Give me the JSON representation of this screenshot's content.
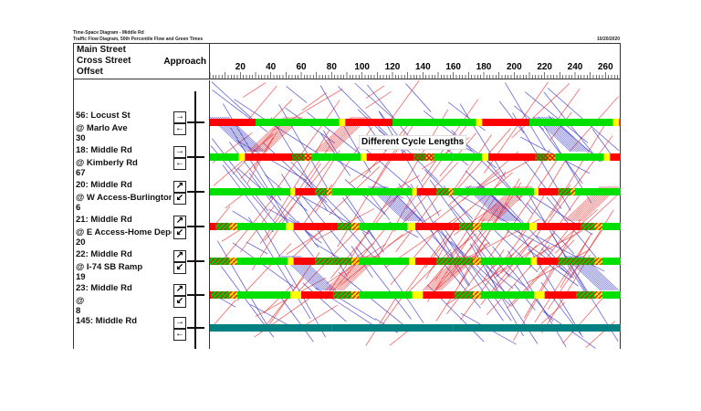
{
  "header": {
    "title": "Time-Space Diagram - Middle Rd",
    "subtitle": "Traffic Flow Diagram, 50th Percentile Flow and Green Times",
    "date": "10/20/2020"
  },
  "columns": {
    "main_street": "Main Street",
    "cross_street": "Cross Street",
    "offset": "Offset",
    "approach": "Approach"
  },
  "axis": {
    "ticks": [
      20,
      40,
      60,
      80,
      100,
      120,
      140,
      160,
      180,
      200,
      220,
      240,
      260
    ],
    "range": [
      0,
      270
    ]
  },
  "annotation": "Different Cycle Lengths",
  "colors": {
    "green": "#00e000",
    "yellow": "#ffff00",
    "red": "#ff0000",
    "teal": "#008080",
    "nb_traffic": "#3333cc",
    "sb_traffic": "#ee3333"
  },
  "intersections": [
    {
      "name": "56: Locust St",
      "cross": "@ Marlo Ave",
      "offset": "30",
      "approach": [
        "arrow-right",
        "arrow-left"
      ],
      "cycle": 90,
      "phases": [
        [
          "red",
          0,
          30
        ],
        [
          "green",
          30,
          85
        ],
        [
          "yellow",
          85,
          89
        ],
        [
          "red",
          89,
          90
        ]
      ]
    },
    {
      "name": "18: Middle Rd",
      "cross": "@ Kimberly Rd",
      "offset": "67",
      "approach": [
        "arrow-right",
        "arrow-left"
      ],
      "cycle": 80,
      "phases": [
        [
          "green",
          0,
          19
        ],
        [
          "yellow",
          19,
          23
        ],
        [
          "red",
          23,
          54
        ],
        [
          "xhatch",
          54,
          62
        ],
        [
          "xyellow",
          62,
          67
        ],
        [
          "green",
          67,
          80
        ]
      ]
    },
    {
      "name": "20: Middle Rd",
      "cross": "@ W Access-Burlington",
      "offset": "6",
      "approach": [
        "arrow-ne",
        "arrow-sw"
      ],
      "cycle": 80,
      "phases": [
        [
          "green",
          0,
          53
        ],
        [
          "yellow",
          53,
          56
        ],
        [
          "red",
          56,
          69
        ],
        [
          "hatch",
          69,
          77
        ],
        [
          "hyellow",
          77,
          80
        ]
      ]
    },
    {
      "name": "21: Middle Rd",
      "cross": "@ E Access-Home Depot",
      "offset": "20",
      "approach": [
        "arrow-ne",
        "arrow-sw"
      ],
      "cycle": 80,
      "phases": [
        [
          "red",
          0,
          4
        ],
        [
          "hatch",
          4,
          13
        ],
        [
          "hyellow",
          13,
          18
        ],
        [
          "green",
          18,
          50
        ],
        [
          "yellow",
          50,
          55
        ],
        [
          "red",
          55,
          80
        ]
      ]
    },
    {
      "name": "22: Middle Rd",
      "cross": "@ I-74 SB Ramp",
      "offset": "19",
      "approach": [
        "arrow-ne",
        "arrow-sw"
      ],
      "cycle": 80,
      "phases": [
        [
          "hatch",
          0,
          13
        ],
        [
          "hyellow",
          13,
          18
        ],
        [
          "green",
          18,
          51
        ],
        [
          "yellow",
          51,
          55
        ],
        [
          "red",
          55,
          69
        ],
        [
          "hatch",
          69,
          80
        ]
      ]
    },
    {
      "name": "23: Middle Rd",
      "cross": "@",
      "offset": "8",
      "approach": [
        "arrow-ne",
        "arrow-sw"
      ],
      "cycle": 80,
      "phases": [
        [
          "red",
          0,
          1
        ],
        [
          "hatch",
          1,
          13
        ],
        [
          "hyellow",
          13,
          18
        ],
        [
          "green",
          18,
          53
        ],
        [
          "yellow",
          53,
          60
        ],
        [
          "red",
          60,
          80
        ]
      ]
    },
    {
      "name": "145: Middle Rd",
      "cross": "",
      "offset": "",
      "approach": [
        "arrow-right",
        "arrow-left"
      ],
      "cycle": 80,
      "phases": [
        [
          "teal",
          0,
          80
        ]
      ]
    }
  ]
}
